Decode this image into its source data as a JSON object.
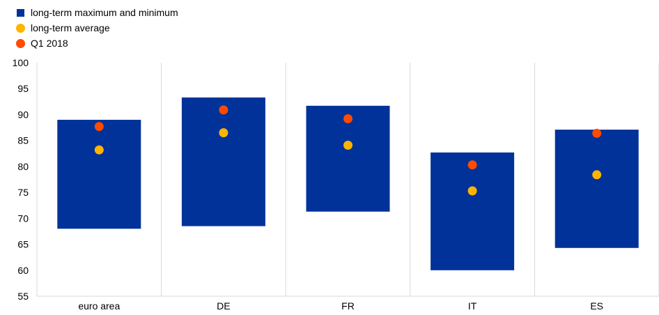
{
  "legend": [
    {
      "label": "long-term maximum and minimum",
      "shape": "square",
      "color": "#003299"
    },
    {
      "label": "long-term average",
      "shape": "dot",
      "color": "#FFB400"
    },
    {
      "label": "Q1 2018",
      "shape": "dot",
      "color": "#FF4B00"
    }
  ],
  "chart_data": {
    "type": "range-bar with dots",
    "categories": [
      "euro area",
      "DE",
      "FR",
      "IT",
      "ES"
    ],
    "series": [
      {
        "name": "long-term maximum and minimum",
        "min": [
          68.0,
          68.5,
          71.3,
          60.0,
          64.3
        ],
        "max": [
          89.0,
          93.3,
          91.7,
          82.7,
          87.1
        ]
      },
      {
        "name": "long-term average",
        "values": [
          83.2,
          86.5,
          84.1,
          75.3,
          78.4
        ]
      },
      {
        "name": "Q1 2018",
        "values": [
          87.7,
          90.9,
          89.2,
          80.3,
          86.4
        ]
      }
    ],
    "ylim": [
      55,
      100
    ],
    "yticks": [
      55,
      60,
      65,
      70,
      75,
      80,
      85,
      90,
      95,
      100
    ],
    "grid": "vertical category separators",
    "legend_position": "top-left"
  }
}
